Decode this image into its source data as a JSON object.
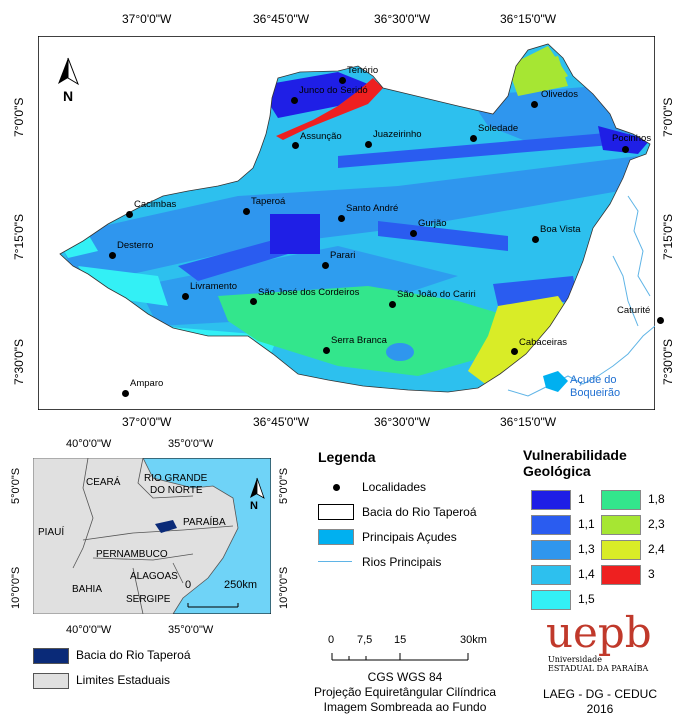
{
  "main_map": {
    "top_coords": [
      "37°0'0\"W",
      "36°45'0\"W",
      "36°30'0\"W",
      "36°15'0\"W"
    ],
    "bottom_coords": [
      "37°0'0\"W",
      "36°45'0\"W",
      "36°30'0\"W",
      "36°15'0\"W"
    ],
    "left_coords": [
      "7°0'0\"S",
      "7°15'0\"S",
      "7°30'0\"S"
    ],
    "right_coords": [
      "7°0'0\"S",
      "7°15'0\"S",
      "7°30'0\"S"
    ],
    "north_label": "N",
    "places": [
      {
        "name": "Tenório"
      },
      {
        "name": "Junco do Seridó"
      },
      {
        "name": "Olivedos"
      },
      {
        "name": "Assunção"
      },
      {
        "name": "Juazeirinho"
      },
      {
        "name": "Soledade"
      },
      {
        "name": "Pocinhos"
      },
      {
        "name": "Cacimbas"
      },
      {
        "name": "Taperoá"
      },
      {
        "name": "Santo André"
      },
      {
        "name": "Gurjão"
      },
      {
        "name": "Boa Vista"
      },
      {
        "name": "Desterro"
      },
      {
        "name": "Parari"
      },
      {
        "name": "Livramento"
      },
      {
        "name": "São José dos Cordeiros"
      },
      {
        "name": "São João do Cariri"
      },
      {
        "name": "Caturité"
      },
      {
        "name": "Serra Branca"
      },
      {
        "name": "Cabaceiras"
      },
      {
        "name": "Amparo"
      }
    ],
    "reservoir_label": "Açude do Boqueirão"
  },
  "inset": {
    "top_coords": [
      "40°0'0\"W",
      "35°0'0\"W"
    ],
    "bottom_coords": [
      "40°0'0\"W",
      "35°0'0\"W"
    ],
    "left_coords": [
      "5°0'0\"S",
      "10°0'0\"S"
    ],
    "right_coords": [
      "5°0'0\"S",
      "10°0'0\"S"
    ],
    "states": [
      "CEARÁ",
      "RIO GRANDE",
      "DO NORTE",
      "PARAÍBA",
      "PIAUÍ",
      "PERNAMBUCO",
      "ALAGOAS",
      "BAHIA",
      "SERGIPE"
    ],
    "scale_zero": "0",
    "scale_label": "250km",
    "north_label": "N"
  },
  "inset_legend": {
    "basin": "Bacia do Rio Taperoá",
    "states": "Limites Estaduais",
    "basin_color": "#0a2a78",
    "states_color": "#e0e0e0"
  },
  "legend": {
    "title": "Legenda",
    "items": [
      {
        "label": "Localidades"
      },
      {
        "label": "Bacia do Rio Taperoá"
      },
      {
        "label": "Principais Açudes"
      },
      {
        "label": "Rios Principais"
      }
    ],
    "reservoir_color": "#00b0f0",
    "river_color": "#5fb4e6"
  },
  "vulnerability": {
    "title_line1": "Vulnerabilidade",
    "title_line2": "Geológica",
    "classes": [
      {
        "label": "1",
        "color": "#1f1fe6"
      },
      {
        "label": "1,1",
        "color": "#2a5cf0"
      },
      {
        "label": "1,3",
        "color": "#2f96ee"
      },
      {
        "label": "1,4",
        "color": "#2dc0ee"
      },
      {
        "label": "1,5",
        "color": "#33f0f5"
      },
      {
        "label": "1,8",
        "color": "#33e68c"
      },
      {
        "label": "2,3",
        "color": "#a6e633"
      },
      {
        "label": "2,4",
        "color": "#d9ec27"
      },
      {
        "label": "3",
        "color": "#ee2020"
      }
    ]
  },
  "scale": {
    "ticks": [
      "0",
      "7,5",
      "15",
      "30km"
    ],
    "crs": "CGS WGS 84",
    "projection": "Projeção Equiretângular Cilíndrica",
    "shading": "Imagem Sombreada ao Fundo"
  },
  "logo": {
    "text": "uepb",
    "line1": "Universidade",
    "line2": "ESTADUAL DA PARAÍBA"
  },
  "credits": {
    "line1": "LAEG - DG - CEDUC",
    "line2": "2016"
  }
}
